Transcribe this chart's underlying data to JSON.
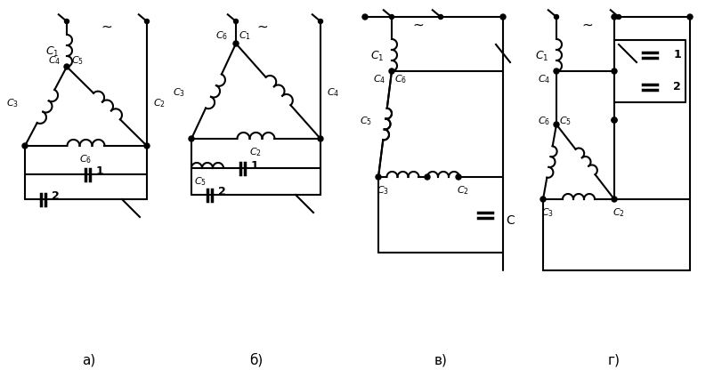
{
  "bg": "#ffffff",
  "lc": "#000000",
  "lw": 1.5,
  "labels": [
    "а)",
    "б)",
    "в)",
    "г)"
  ],
  "fs": 9
}
